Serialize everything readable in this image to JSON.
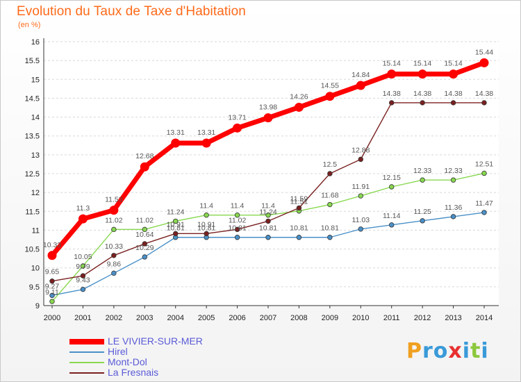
{
  "header": {
    "title": "Evolution du Taux de Taxe d'Habitation",
    "unit": "(en %)"
  },
  "chart_data": {
    "type": "line",
    "title": "Evolution du Taux de Taxe d'Habitation",
    "ylabel": "(en %)",
    "xlabel": "",
    "x": [
      "2000",
      "2001",
      "2002",
      "2003",
      "2004",
      "2005",
      "2006",
      "2007",
      "2008",
      "2009",
      "2010",
      "2011",
      "2012",
      "2013",
      "2014"
    ],
    "ylim": [
      9,
      16
    ],
    "yticks": [
      "9",
      "9.5",
      "10",
      "10.5",
      "11",
      "11.5",
      "12",
      "12.5",
      "13",
      "13.5",
      "14",
      "14.5",
      "15",
      "15.5",
      "16"
    ],
    "grid": "horizontal",
    "legend_position": "bottom-left",
    "series": [
      {
        "name": "LE VIVIER-SUR-MER",
        "color": "#ff0000",
        "values": [
          10.33,
          11.3,
          11.53,
          12.68,
          13.31,
          13.31,
          13.71,
          13.98,
          14.26,
          14.55,
          14.84,
          15.14,
          15.14,
          15.14,
          15.44
        ],
        "labels": [
          "10.33",
          "11.3",
          "11.53",
          "12.68",
          "13.31",
          "13.31",
          "13.71",
          "13.98",
          "14.26",
          "14.55",
          "14.84",
          "15.14",
          "15.14",
          "15.14",
          "15.44"
        ]
      },
      {
        "name": "Hirel",
        "color": "#4a90c8",
        "values": [
          9.27,
          9.43,
          9.86,
          10.29,
          10.81,
          10.81,
          10.81,
          10.81,
          10.81,
          10.81,
          11.03,
          11.14,
          11.25,
          11.36,
          11.47
        ],
        "labels": [
          "9.27",
          "9.43",
          "9.86",
          "10.29",
          "10.81",
          "10.81",
          "10.81",
          "10.81",
          "10.81",
          "10.81",
          "11.03",
          "11.14",
          "11.25",
          "11.36",
          "11.47"
        ]
      },
      {
        "name": "Mont-Dol",
        "color": "#88d850",
        "values": [
          9.11,
          10.05,
          11.02,
          11.02,
          11.24,
          11.4,
          11.4,
          11.4,
          11.51,
          11.68,
          11.91,
          12.15,
          12.33,
          12.33,
          12.51
        ],
        "labels": [
          "9.11",
          "10.05",
          "11.02",
          "11.02",
          "11.24",
          "11.4",
          "11.4",
          "11.4",
          "11.51",
          "11.68",
          "11.91",
          "12.15",
          "12.33",
          "12.33",
          "12.51"
        ]
      },
      {
        "name": "La Fresnais",
        "color": "#7a2020",
        "values": [
          9.65,
          9.79,
          10.33,
          10.64,
          10.91,
          10.91,
          11.02,
          11.24,
          11.59,
          12.5,
          12.88,
          14.38,
          14.38,
          14.38,
          14.38
        ],
        "labels": [
          "9.65",
          "9.79",
          "10.33",
          "10.64",
          "10.91",
          "10.91",
          "11.02",
          "11.24",
          "11.59",
          "12.5",
          "12.88",
          "14.38",
          "14.38",
          "14.38",
          "14.38"
        ]
      }
    ]
  },
  "logo": {
    "letters": [
      "P",
      "r",
      "o",
      "x",
      "i",
      "t",
      "i"
    ],
    "colors": [
      "#f0a020",
      "#3a9ad8",
      "#3a9ad8",
      "#e83030",
      "#3a9ad8",
      "#8cc83c",
      "#3a9ad8"
    ]
  }
}
